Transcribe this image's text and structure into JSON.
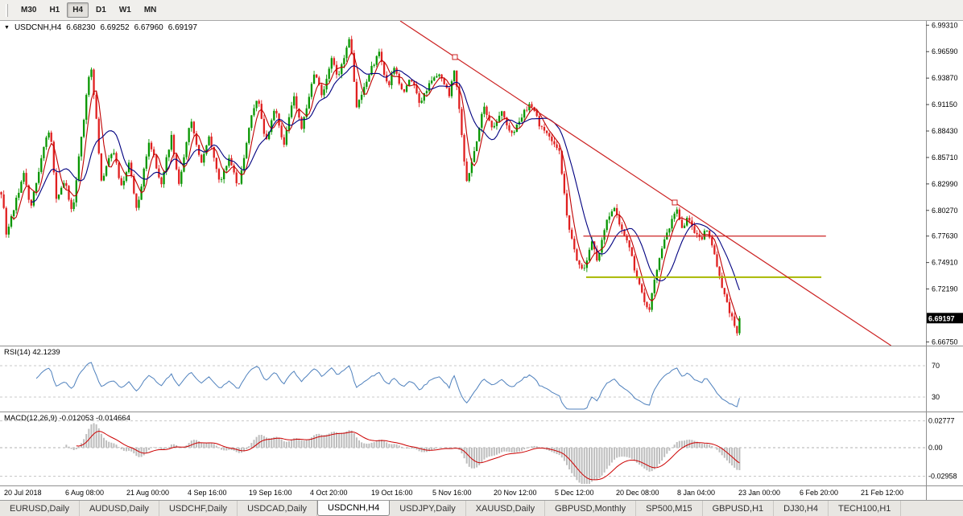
{
  "colors": {
    "up_candle": "#089600",
    "down_candle": "#e02020",
    "ma_fast": "#c00000",
    "ma_slow": "#000080",
    "trendline": "#cc2222",
    "hline_red": "#cc2222",
    "hline_yellow": "#a8b800",
    "rsi_line": "#4f81bd",
    "macd_hist": "#bdbdbd",
    "macd_signal": "#cc0000",
    "price_marker_bg": "#000000",
    "price_marker_text": "#ffffff"
  },
  "toolbar": {
    "timeframes": [
      {
        "label": "M30",
        "active": false
      },
      {
        "label": "H1",
        "active": false
      },
      {
        "label": "H4",
        "active": true
      },
      {
        "label": "D1",
        "active": false
      },
      {
        "label": "W1",
        "active": false
      },
      {
        "label": "MN",
        "active": false
      }
    ]
  },
  "chart_header": {
    "symbol_tf": "USDCNH,H4",
    "open": "6.68230",
    "high": "6.69252",
    "low": "6.67960",
    "close": "6.69197"
  },
  "chart_data": {
    "type": "candlestick",
    "symbol": "USDCNH",
    "timeframe": "H4",
    "price_axis": {
      "labels": [
        6.9931,
        6.9659,
        6.9387,
        6.9115,
        6.8843,
        6.8571,
        6.8299,
        6.8027,
        6.7763,
        6.7491,
        6.7219,
        6.6675
      ],
      "current_price": "6.69197",
      "view_max": 6.9975,
      "view_min": 6.6637
    },
    "candles": 296,
    "last_x_frac": 0.8,
    "price_path": [
      [
        0.002,
        6.8215
      ],
      [
        0.007,
        6.776
      ],
      [
        0.016,
        6.809
      ],
      [
        0.026,
        6.842
      ],
      [
        0.033,
        6.805
      ],
      [
        0.048,
        6.87
      ],
      [
        0.054,
        6.888
      ],
      [
        0.061,
        6.813
      ],
      [
        0.07,
        6.834
      ],
      [
        0.078,
        6.797
      ],
      [
        0.087,
        6.871
      ],
      [
        0.098,
        6.956
      ],
      [
        0.104,
        6.896
      ],
      [
        0.109,
        6.83
      ],
      [
        0.122,
        6.867
      ],
      [
        0.132,
        6.822
      ],
      [
        0.139,
        6.855
      ],
      [
        0.148,
        6.801
      ],
      [
        0.161,
        6.875
      ],
      [
        0.174,
        6.83
      ],
      [
        0.185,
        6.879
      ],
      [
        0.193,
        6.826
      ],
      [
        0.206,
        6.896
      ],
      [
        0.217,
        6.85
      ],
      [
        0.226,
        6.879
      ],
      [
        0.237,
        6.83
      ],
      [
        0.248,
        6.859
      ],
      [
        0.257,
        6.822
      ],
      [
        0.27,
        6.896
      ],
      [
        0.278,
        6.921
      ],
      [
        0.287,
        6.871
      ],
      [
        0.297,
        6.908
      ],
      [
        0.306,
        6.867
      ],
      [
        0.317,
        6.921
      ],
      [
        0.326,
        6.888
      ],
      [
        0.339,
        6.945
      ],
      [
        0.348,
        6.921
      ],
      [
        0.358,
        6.958
      ],
      [
        0.365,
        6.937
      ],
      [
        0.378,
        6.981
      ],
      [
        0.385,
        6.908
      ],
      [
        0.396,
        6.937
      ],
      [
        0.409,
        6.966
      ],
      [
        0.419,
        6.929
      ],
      [
        0.426,
        6.95
      ],
      [
        0.435,
        6.921
      ],
      [
        0.443,
        6.941
      ],
      [
        0.454,
        6.912
      ],
      [
        0.463,
        6.933
      ],
      [
        0.474,
        6.945
      ],
      [
        0.485,
        6.921
      ],
      [
        0.491,
        6.95
      ],
      [
        0.497,
        6.896
      ],
      [
        0.504,
        6.83
      ],
      [
        0.515,
        6.875
      ],
      [
        0.522,
        6.912
      ],
      [
        0.532,
        6.884
      ],
      [
        0.541,
        6.904
      ],
      [
        0.552,
        6.879
      ],
      [
        0.563,
        6.9
      ],
      [
        0.574,
        6.912
      ],
      [
        0.584,
        6.888
      ],
      [
        0.596,
        6.875
      ],
      [
        0.604,
        6.863
      ],
      [
        0.613,
        6.789
      ],
      [
        0.622,
        6.755
      ],
      [
        0.63,
        6.737
      ],
      [
        0.639,
        6.772
      ],
      [
        0.645,
        6.747
      ],
      [
        0.654,
        6.789
      ],
      [
        0.663,
        6.809
      ],
      [
        0.671,
        6.784
      ],
      [
        0.68,
        6.764
      ],
      [
        0.687,
        6.735
      ],
      [
        0.696,
        6.708
      ],
      [
        0.701,
        6.699
      ],
      [
        0.707,
        6.731
      ],
      [
        0.715,
        6.764
      ],
      [
        0.723,
        6.784
      ],
      [
        0.73,
        6.807
      ],
      [
        0.737,
        6.784
      ],
      [
        0.743,
        6.795
      ],
      [
        0.75,
        6.779
      ],
      [
        0.757,
        6.772
      ],
      [
        0.763,
        6.783
      ],
      [
        0.77,
        6.762
      ],
      [
        0.776,
        6.739
      ],
      [
        0.783,
        6.714
      ],
      [
        0.79,
        6.693
      ],
      [
        0.795,
        6.675
      ],
      [
        0.8,
        6.692
      ]
    ],
    "objects": {
      "trendline": {
        "x1_frac": 0.4913,
        "price1": 6.9603,
        "x2_frac": 0.7287,
        "price2": 6.8108
      },
      "hline_red": {
        "price": 6.7763,
        "x1_frac": 0.63,
        "x2_frac": 0.892
      },
      "hline_yellow": {
        "price": 6.734,
        "x1_frac": 0.633,
        "x2_frac": 0.887
      }
    }
  },
  "rsi_panel": {
    "label": "RSI(14) 42.1239",
    "levels": [
      {
        "text": "70",
        "value": 70
      },
      {
        "text": "30",
        "value": 30
      }
    ]
  },
  "macd_panel": {
    "label": "MACD(12,26,9) -0.012053 -0.014664",
    "levels": [
      {
        "text": "0.02777",
        "value": 0.02777
      },
      {
        "text": "0.00",
        "value": 0
      },
      {
        "text": "-0.02958",
        "value": -0.02958
      }
    ]
  },
  "time_axis": {
    "labels": [
      "20 Jul 2018",
      "6 Aug 08:00",
      "21 Aug 00:00",
      "4 Sep 16:00",
      "19 Sep 16:00",
      "4 Oct 20:00",
      "19 Oct 16:00",
      "5 Nov 16:00",
      "20 Nov 12:00",
      "5 Dec 12:00",
      "20 Dec 08:00",
      "8 Jan 04:00",
      "23 Jan 00:00",
      "6 Feb 20:00",
      "21 Feb 12:00"
    ]
  },
  "tabs": [
    {
      "label": "EURUSD,Daily",
      "active": false
    },
    {
      "label": "AUDUSD,Daily",
      "active": false
    },
    {
      "label": "USDCHF,Daily",
      "active": false
    },
    {
      "label": "USDCAD,Daily",
      "active": false
    },
    {
      "label": "USDCNH,H4",
      "active": true
    },
    {
      "label": "USDJPY,Daily",
      "active": false
    },
    {
      "label": "XAUUSD,Daily",
      "active": false
    },
    {
      "label": "GBPUSD,Monthly",
      "active": false
    },
    {
      "label": "SP500,M15",
      "active": false
    },
    {
      "label": "GBPUSD,H1",
      "active": false
    },
    {
      "label": "DJ30,H4",
      "active": false
    },
    {
      "label": "TECH100,H1",
      "active": false
    }
  ]
}
